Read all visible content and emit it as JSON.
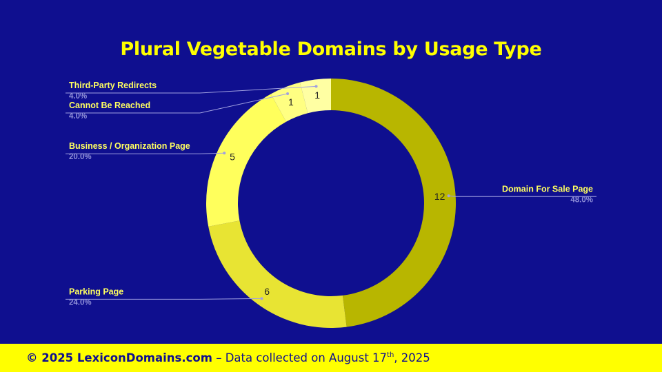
{
  "title": "Plural Vegetable Domains by Usage Type",
  "footer": {
    "brand": "© 2025 LexiconDomains.com",
    "dash": " – ",
    "text_before_sup": "Data collected on August 17",
    "sup": "th",
    "text_after_sup": ", 2025"
  },
  "colors": {
    "background": "#0f0f8f",
    "accent": "#ffff00",
    "label_text": "#ffff60",
    "percent_text": "#8f8fd8",
    "leader_line": "#a0a0e0"
  },
  "chart_data": {
    "type": "pie",
    "donut": true,
    "title": "Plural Vegetable Domains by Usage Type",
    "legend": "none",
    "slices": [
      {
        "label": "Domain For Sale Page",
        "value": 12,
        "percent": "48.0%",
        "color": "#b8b600",
        "side": "right"
      },
      {
        "label": "Parking Page",
        "value": 6,
        "percent": "24.0%",
        "color": "#e8e433",
        "side": "left"
      },
      {
        "label": "Business / Organization Page",
        "value": 5,
        "percent": "20.0%",
        "color": "#ffff5c",
        "side": "left"
      },
      {
        "label": "Cannot Be Reached",
        "value": 1,
        "percent": "4.0%",
        "color": "#ffff82",
        "side": "left"
      },
      {
        "label": "Third-Party Redirects",
        "value": 1,
        "percent": "4.0%",
        "color": "#ffffa3",
        "side": "left"
      }
    ]
  }
}
